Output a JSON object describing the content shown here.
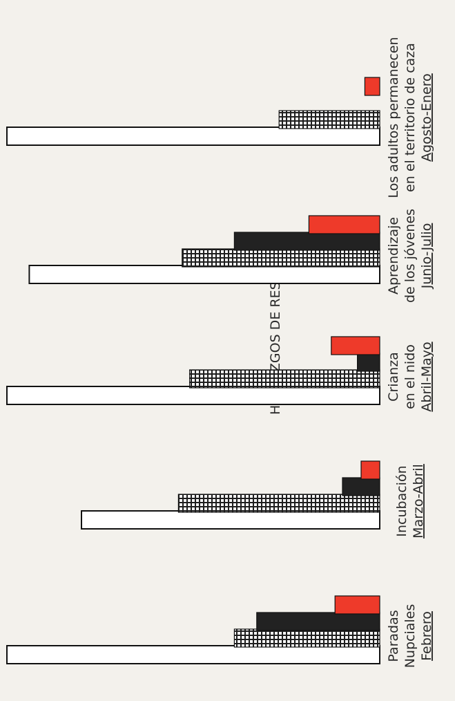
{
  "chart_data": {
    "type": "bar",
    "title": "HALLAZGOS DE RESTOS.-",
    "orientation": "horizontal, page rotated 90° counter-clockwise",
    "grid": false,
    "legend": "none",
    "value_unit": "relative bar length (fraction of longest bar)",
    "colors": {
      "series_white": "#ffffff",
      "series_hatched": "#1e1e1e",
      "series_black": "#222222",
      "series_red": "#ee3a2a",
      "outline": "#111111"
    },
    "categories": [
      {
        "lines": [
          "Paradas",
          "Nupciales",
          "Febrero"
        ]
      },
      {
        "lines": [
          "Incubación",
          "Marzo-Abril"
        ]
      },
      {
        "lines": [
          "Crianza",
          "en el nido",
          "Abril-Mayo"
        ]
      },
      {
        "lines": [
          "Aprendizaje",
          "de los jóvenes",
          "Junio-Julio"
        ]
      },
      {
        "lines": [
          "Los adultos permanecen",
          "en el territorio de caza",
          "Agosto-Enero"
        ]
      }
    ],
    "series": [
      {
        "pattern": "white",
        "values": [
          1.0,
          0.8,
          1.0,
          0.94,
          1.0
        ]
      },
      {
        "pattern": "hatched",
        "values": [
          0.39,
          0.54,
          0.51,
          0.53,
          0.27
        ]
      },
      {
        "pattern": "black",
        "values": [
          0.33,
          0.1,
          0.06,
          0.39,
          0
        ]
      },
      {
        "pattern": "red",
        "values": [
          0.12,
          0.05,
          0.13,
          0.19,
          0.04
        ]
      }
    ]
  }
}
